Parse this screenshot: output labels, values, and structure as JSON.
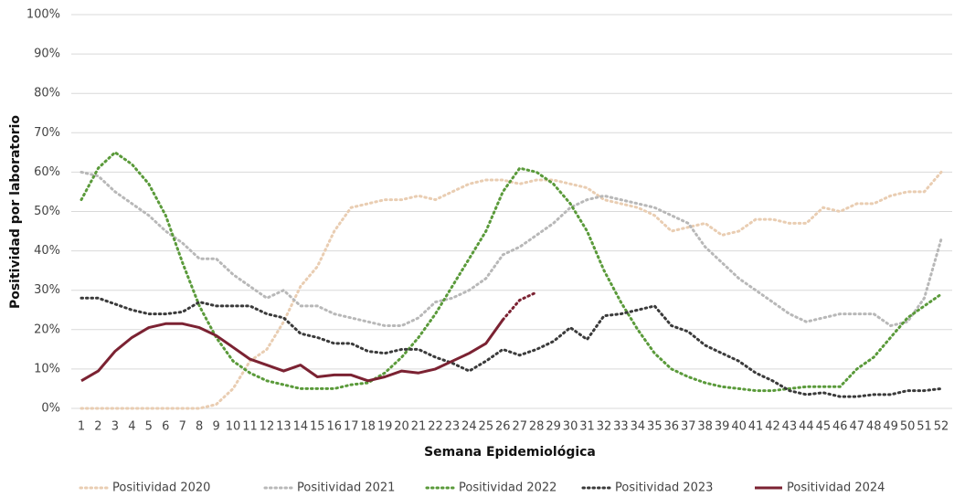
{
  "chart_data": {
    "type": "line",
    "y_label": "Positividad por laboratorio",
    "x_label": "Semana Epidemiológica",
    "categories": [
      1,
      2,
      3,
      4,
      5,
      6,
      7,
      8,
      9,
      10,
      11,
      12,
      13,
      14,
      15,
      16,
      17,
      18,
      19,
      20,
      21,
      22,
      23,
      24,
      25,
      26,
      27,
      28,
      29,
      30,
      31,
      32,
      33,
      34,
      35,
      36,
      37,
      38,
      39,
      40,
      41,
      42,
      43,
      44,
      45,
      46,
      47,
      48,
      49,
      50,
      51,
      52
    ],
    "ylim": [
      0,
      100
    ],
    "yticks": [
      {
        "value": 0,
        "label": "0%"
      },
      {
        "value": 10,
        "label": "10%"
      },
      {
        "value": 20,
        "label": "20%"
      },
      {
        "value": 30,
        "label": "30%"
      },
      {
        "value": 40,
        "label": "40%"
      },
      {
        "value": 50,
        "label": "50%"
      },
      {
        "value": 60,
        "label": "60%"
      },
      {
        "value": 70,
        "label": "70%"
      },
      {
        "value": 80,
        "label": "80%"
      },
      {
        "value": 90,
        "label": "90%"
      },
      {
        "value": 100,
        "label": "100%"
      }
    ],
    "grid": true,
    "legend": "bottom",
    "series": [
      {
        "name": "Positividad 2020",
        "color": "#e9cdb2",
        "style": "dotted",
        "values": [
          0,
          0,
          0,
          0,
          0,
          0,
          0,
          0,
          1,
          5,
          12,
          15,
          22,
          31,
          36,
          45,
          51,
          52,
          53,
          53,
          54,
          53,
          55,
          57,
          58,
          58,
          57,
          58,
          58,
          57,
          56,
          53,
          52,
          51,
          49,
          45,
          46,
          47,
          44,
          45,
          48,
          48,
          47,
          47,
          51,
          50,
          52,
          52,
          54,
          55,
          55,
          60
        ]
      },
      {
        "name": "Positividad 2021",
        "color": "#b8b8b8",
        "style": "dotted",
        "values": [
          60,
          59,
          55,
          52,
          49,
          45,
          42,
          38,
          38,
          34,
          31,
          28,
          30,
          26,
          26,
          24,
          23,
          22,
          21,
          21,
          23,
          27,
          28,
          30,
          33,
          39,
          41,
          44,
          47,
          51,
          53,
          54,
          53,
          52,
          51,
          49,
          47,
          41,
          37,
          33,
          30,
          27,
          24,
          22,
          23,
          24,
          24,
          24,
          21,
          22,
          28,
          43
        ]
      },
      {
        "name": "Positividad 2022",
        "color": "#5a9a3a",
        "style": "dotted",
        "values": [
          53,
          61,
          65,
          62,
          57,
          49,
          37,
          26,
          18,
          12,
          9,
          7,
          6,
          5,
          5,
          5,
          6,
          6.5,
          9,
          13,
          18,
          24,
          31,
          38,
          45,
          55,
          61,
          60,
          57,
          52,
          45,
          35,
          27,
          20,
          14,
          10,
          8,
          6.5,
          5.5,
          5,
          4.5,
          4.5,
          5,
          5.5,
          5.5,
          5.5,
          10,
          13,
          18,
          23,
          26,
          29
        ]
      },
      {
        "name": "Positividad 2023",
        "color": "#3a3a3a",
        "style": "dotted",
        "values": [
          28,
          28,
          26.5,
          25,
          24,
          24,
          24.5,
          27,
          26,
          26,
          26,
          24,
          23,
          19,
          18,
          16.5,
          16.5,
          14.5,
          14,
          15,
          15,
          13,
          11.5,
          9.5,
          12,
          15,
          13.5,
          15,
          17,
          20.5,
          17.5,
          23.5,
          24,
          25,
          26,
          21,
          19.5,
          16,
          14,
          12,
          9,
          7,
          4.5,
          3.5,
          4,
          3,
          3,
          3.5,
          3.5,
          4.5,
          4.5,
          5
        ]
      },
      {
        "name": "Positividad 2024",
        "color": "#7b2232",
        "style": "solid",
        "dotted_from": 25,
        "values": [
          7,
          9.5,
          14.5,
          18,
          20.5,
          21.5,
          21.5,
          20.5,
          18.5,
          15.5,
          12.5,
          11,
          9.5,
          11,
          8,
          8.5,
          8.5,
          7,
          8,
          9.5,
          9,
          10,
          12,
          14,
          16.5,
          22.5,
          27.5,
          29.5,
          null,
          null,
          null,
          null,
          null,
          null,
          null,
          null,
          null,
          null,
          null,
          null,
          null,
          null,
          null,
          null,
          null,
          null,
          null,
          null,
          null,
          null,
          null,
          null
        ]
      }
    ]
  }
}
